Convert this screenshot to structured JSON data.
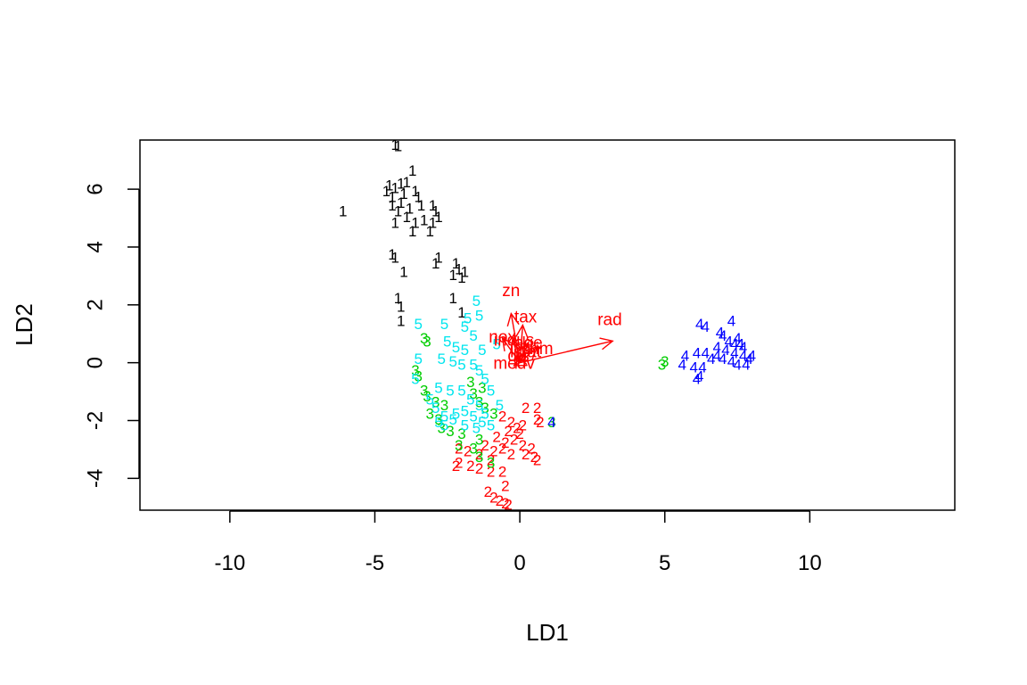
{
  "chart_data": {
    "type": "scatter",
    "title": "",
    "xlabel": "LD1",
    "ylabel": "LD2",
    "xlim": [
      -13.1,
      15
    ],
    "ylim": [
      -5.1,
      7.7
    ],
    "xticks": [
      -10,
      -5,
      0,
      5,
      10
    ],
    "yticks": [
      -4,
      -2,
      0,
      2,
      4,
      6
    ],
    "xtick_labels": [
      "-10",
      "-5",
      "0",
      "5",
      "10"
    ],
    "ytick_labels": [
      "-4",
      "-2",
      "0",
      "2",
      "4",
      "6"
    ],
    "grid": false,
    "legend": "none",
    "class_colors": {
      "1": "#000000",
      "2": "#ff0000",
      "3": "#00cd00",
      "4": "#0000ff",
      "5": "#00e5ee"
    },
    "arrow_color": "#ff0000",
    "series": [
      {
        "label": "1",
        "points": [
          [
            -4.3,
            7.5
          ],
          [
            -4.2,
            7.45
          ],
          [
            -3.7,
            6.6
          ],
          [
            -4.5,
            6.1
          ],
          [
            -4.3,
            6.0
          ],
          [
            -4.1,
            6.15
          ],
          [
            -3.9,
            6.2
          ],
          [
            -4.6,
            5.9
          ],
          [
            -4.4,
            5.7
          ],
          [
            -4.0,
            5.8
          ],
          [
            -3.6,
            5.9
          ],
          [
            -3.5,
            5.7
          ],
          [
            -4.4,
            5.4
          ],
          [
            -4.1,
            5.5
          ],
          [
            -3.8,
            5.3
          ],
          [
            -3.4,
            5.4
          ],
          [
            -3.0,
            5.4
          ],
          [
            -2.9,
            5.2
          ],
          [
            -4.2,
            5.2
          ],
          [
            -3.9,
            5.0
          ],
          [
            -3.6,
            4.8
          ],
          [
            -3.3,
            4.9
          ],
          [
            -3.0,
            4.8
          ],
          [
            -2.8,
            5.0
          ],
          [
            -4.3,
            4.8
          ],
          [
            -3.7,
            4.5
          ],
          [
            -3.1,
            4.5
          ],
          [
            -6.1,
            5.2
          ],
          [
            -4.4,
            3.7
          ],
          [
            -4.3,
            3.6
          ],
          [
            -4.0,
            3.1
          ],
          [
            -2.8,
            3.6
          ],
          [
            -2.9,
            3.4
          ],
          [
            -2.2,
            3.4
          ],
          [
            -2.1,
            3.2
          ],
          [
            -2.3,
            3.0
          ],
          [
            -2.0,
            2.9
          ],
          [
            -1.9,
            3.1
          ],
          [
            -4.2,
            2.2
          ],
          [
            -4.1,
            1.9
          ],
          [
            -2.3,
            2.2
          ],
          [
            -2.0,
            1.7
          ],
          [
            -4.1,
            1.4
          ]
        ]
      },
      {
        "label": "2",
        "points": [
          [
            -0.6,
            -1.9
          ],
          [
            -0.3,
            -2.1
          ],
          [
            0.2,
            -1.6
          ],
          [
            0.6,
            -1.6
          ],
          [
            0.1,
            -2.2
          ],
          [
            0.6,
            -2.0
          ],
          [
            0.7,
            -2.1
          ],
          [
            -0.4,
            -2.4
          ],
          [
            -0.1,
            -2.3
          ],
          [
            -0.8,
            -2.6
          ],
          [
            -0.5,
            -2.8
          ],
          [
            -0.2,
            -2.7
          ],
          [
            0.0,
            -2.5
          ],
          [
            0.1,
            -2.9
          ],
          [
            -1.2,
            -2.9
          ],
          [
            -0.9,
            -3.1
          ],
          [
            -0.6,
            -3.0
          ],
          [
            -0.3,
            -3.2
          ],
          [
            0.2,
            -3.2
          ],
          [
            0.4,
            -3.0
          ],
          [
            0.5,
            -3.3
          ],
          [
            0.6,
            -3.4
          ],
          [
            -2.1,
            -3.0
          ],
          [
            -1.8,
            -3.1
          ],
          [
            -1.4,
            -3.2
          ],
          [
            -2.1,
            -3.5
          ],
          [
            -1.7,
            -3.6
          ],
          [
            -1.4,
            -3.7
          ],
          [
            -1.0,
            -3.4
          ],
          [
            -2.2,
            -3.6
          ],
          [
            -1.0,
            -3.8
          ],
          [
            -0.6,
            -3.8
          ],
          [
            -0.5,
            -4.3
          ],
          [
            -1.1,
            -4.5
          ],
          [
            -0.9,
            -4.7
          ],
          [
            -0.7,
            -4.8
          ],
          [
            -0.5,
            -4.9
          ],
          [
            -0.4,
            -4.95
          ]
        ]
      },
      {
        "label": "3",
        "points": [
          [
            -3.3,
            0.8
          ],
          [
            -3.2,
            0.7
          ],
          [
            -3.6,
            -0.3
          ],
          [
            -3.5,
            -0.5
          ],
          [
            -3.3,
            -1.0
          ],
          [
            -3.2,
            -1.2
          ],
          [
            -2.9,
            -1.4
          ],
          [
            -2.6,
            -1.5
          ],
          [
            -3.1,
            -1.8
          ],
          [
            -2.8,
            -2.0
          ],
          [
            -2.7,
            -2.3
          ],
          [
            -2.4,
            -2.4
          ],
          [
            -2.0,
            -2.5
          ],
          [
            -1.4,
            -2.7
          ],
          [
            -2.1,
            -2.9
          ],
          [
            -1.6,
            -3.0
          ],
          [
            -1.4,
            -3.3
          ],
          [
            -1.0,
            -3.5
          ],
          [
            -1.7,
            -0.7
          ],
          [
            -1.3,
            -0.9
          ],
          [
            -1.6,
            -1.1
          ],
          [
            -1.4,
            -1.4
          ],
          [
            -1.2,
            -1.6
          ],
          [
            -0.9,
            -1.8
          ],
          [
            5.0,
            0.0
          ],
          [
            4.9,
            -0.1
          ],
          [
            1.1,
            -2.1
          ]
        ]
      },
      {
        "label": "4",
        "points": [
          [
            6.2,
            1.3
          ],
          [
            7.3,
            1.4
          ],
          [
            6.4,
            1.2
          ],
          [
            6.9,
            1.0
          ],
          [
            7.0,
            0.9
          ],
          [
            7.5,
            0.8
          ],
          [
            7.2,
            0.7
          ],
          [
            7.6,
            0.6
          ],
          [
            6.8,
            0.5
          ],
          [
            7.1,
            0.4
          ],
          [
            7.4,
            0.3
          ],
          [
            7.7,
            0.2
          ],
          [
            7.9,
            0.1
          ],
          [
            8.0,
            0.2
          ],
          [
            7.8,
            -0.1
          ],
          [
            7.5,
            -0.1
          ],
          [
            7.3,
            0.0
          ],
          [
            7.0,
            0.1
          ],
          [
            6.8,
            0.2
          ],
          [
            6.6,
            0.1
          ],
          [
            6.4,
            0.3
          ],
          [
            6.1,
            0.3
          ],
          [
            5.7,
            0.2
          ],
          [
            5.6,
            -0.1
          ],
          [
            6.0,
            -0.2
          ],
          [
            6.3,
            -0.2
          ],
          [
            6.2,
            -0.5
          ],
          [
            6.1,
            -0.6
          ],
          [
            7.7,
            0.5
          ],
          [
            7.4,
            0.6
          ],
          [
            1.1,
            -2.1
          ]
        ]
      },
      {
        "label": "5",
        "points": [
          [
            -3.5,
            1.3
          ],
          [
            -2.6,
            1.3
          ],
          [
            -1.8,
            1.5
          ],
          [
            -1.4,
            1.6
          ],
          [
            -1.5,
            2.1
          ],
          [
            -1.9,
            1.2
          ],
          [
            -1.6,
            0.9
          ],
          [
            -2.5,
            0.7
          ],
          [
            -2.2,
            0.5
          ],
          [
            -1.9,
            0.4
          ],
          [
            -1.3,
            0.4
          ],
          [
            -0.8,
            0.6
          ],
          [
            -2.7,
            0.1
          ],
          [
            -2.3,
            0.0
          ],
          [
            -2.0,
            -0.1
          ],
          [
            -1.6,
            -0.1
          ],
          [
            -1.4,
            -0.3
          ],
          [
            -3.5,
            0.1
          ],
          [
            -3.6,
            -0.6
          ],
          [
            -2.8,
            -0.9
          ],
          [
            -2.4,
            -1.0
          ],
          [
            -2.0,
            -1.0
          ],
          [
            -1.7,
            -1.3
          ],
          [
            -1.4,
            -1.5
          ],
          [
            -1.2,
            -1.8
          ],
          [
            -3.1,
            -1.3
          ],
          [
            -2.9,
            -1.6
          ],
          [
            -2.6,
            -1.9
          ],
          [
            -2.2,
            -1.8
          ],
          [
            -1.9,
            -1.7
          ],
          [
            -1.6,
            -1.9
          ],
          [
            -1.3,
            -2.1
          ],
          [
            -1.0,
            -2.2
          ],
          [
            -2.6,
            -2.2
          ],
          [
            -2.3,
            -2.0
          ],
          [
            -1.9,
            -2.2
          ],
          [
            -1.5,
            -2.3
          ],
          [
            -2.8,
            -2.1
          ],
          [
            -1.0,
            -1.0
          ],
          [
            -0.7,
            -1.5
          ],
          [
            -1.2,
            -0.6
          ]
        ]
      }
    ],
    "arrows": [
      {
        "label": "zn",
        "x": -0.3,
        "y": 1.7,
        "lx": -0.3,
        "ly": 2.45
      },
      {
        "label": "tax",
        "x": 0.1,
        "y": 1.3,
        "lx": 0.2,
        "ly": 1.55
      },
      {
        "label": "rad",
        "x": 3.2,
        "y": 0.75,
        "lx": 3.1,
        "ly": 1.45
      },
      {
        "label": "nox",
        "x": -0.6,
        "y": 0.85,
        "lx": -0.6,
        "ly": 0.85
      },
      {
        "label": "indus",
        "x": -0.25,
        "y": 0.8,
        "lx": -0.2,
        "ly": 0.75
      },
      {
        "label": "age",
        "x": 0.3,
        "y": 0.7,
        "lx": 0.3,
        "ly": 0.65
      },
      {
        "label": "crim",
        "x": 0.6,
        "y": 0.55,
        "lx": 0.6,
        "ly": 0.45
      },
      {
        "label": "lstat",
        "x": 0.2,
        "y": 0.35,
        "lx": 0.2,
        "ly": 0.35
      },
      {
        "label": "medv",
        "x": -0.2,
        "y": -0.1,
        "lx": -0.2,
        "ly": -0.05
      },
      {
        "label": "dis",
        "x": -0.1,
        "y": 0.25,
        "lx": -0.05,
        "ly": 0.2
      }
    ]
  }
}
